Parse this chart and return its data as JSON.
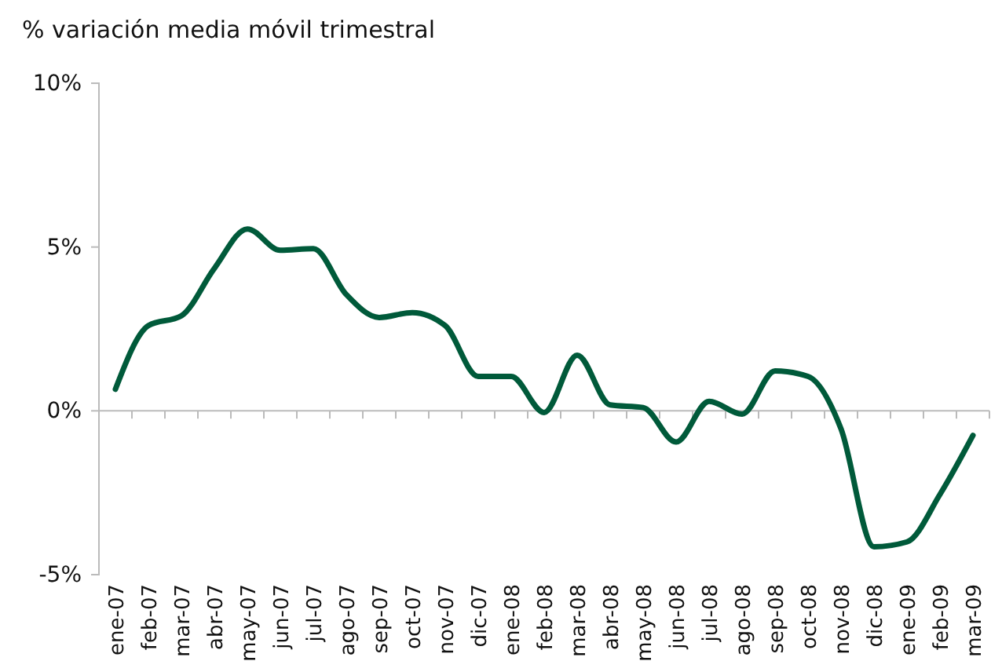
{
  "chart_data": {
    "type": "line",
    "title": "% variación media móvil trimestral",
    "categories": [
      "ene-07",
      "feb-07",
      "mar-07",
      "abr-07",
      "may-07",
      "jun-07",
      "jul-07",
      "ago-07",
      "sep-07",
      "oct-07",
      "nov-07",
      "dic-07",
      "ene-08",
      "feb-08",
      "mar-08",
      "abr-08",
      "may-08",
      "jun-08",
      "jul-08",
      "ago-08",
      "sep-08",
      "oct-08",
      "nov-08",
      "dic-08",
      "ene-09",
      "feb-09",
      "mar-09"
    ],
    "series": [
      {
        "color": "#005a3a",
        "values": [
          0.66,
          2.6,
          2.9,
          4.35,
          5.55,
          4.9,
          4.95,
          3.55,
          2.85,
          3.0,
          2.6,
          1.05,
          1.05,
          -0.05,
          1.7,
          0.18,
          0.1,
          -0.95,
          0.29,
          -0.1,
          1.22,
          1.05,
          -0.55,
          -4.15,
          -4.0,
          -2.55,
          -0.75
        ]
      }
    ],
    "ylim": [
      -5,
      10
    ],
    "yticks": [
      {
        "value": -5,
        "label": "-5%"
      },
      {
        "value": 0,
        "label": "0%"
      },
      {
        "value": 5,
        "label": "5%"
      },
      {
        "value": 10,
        "label": "10%"
      }
    ],
    "marker": "none",
    "line_style": "solid"
  }
}
